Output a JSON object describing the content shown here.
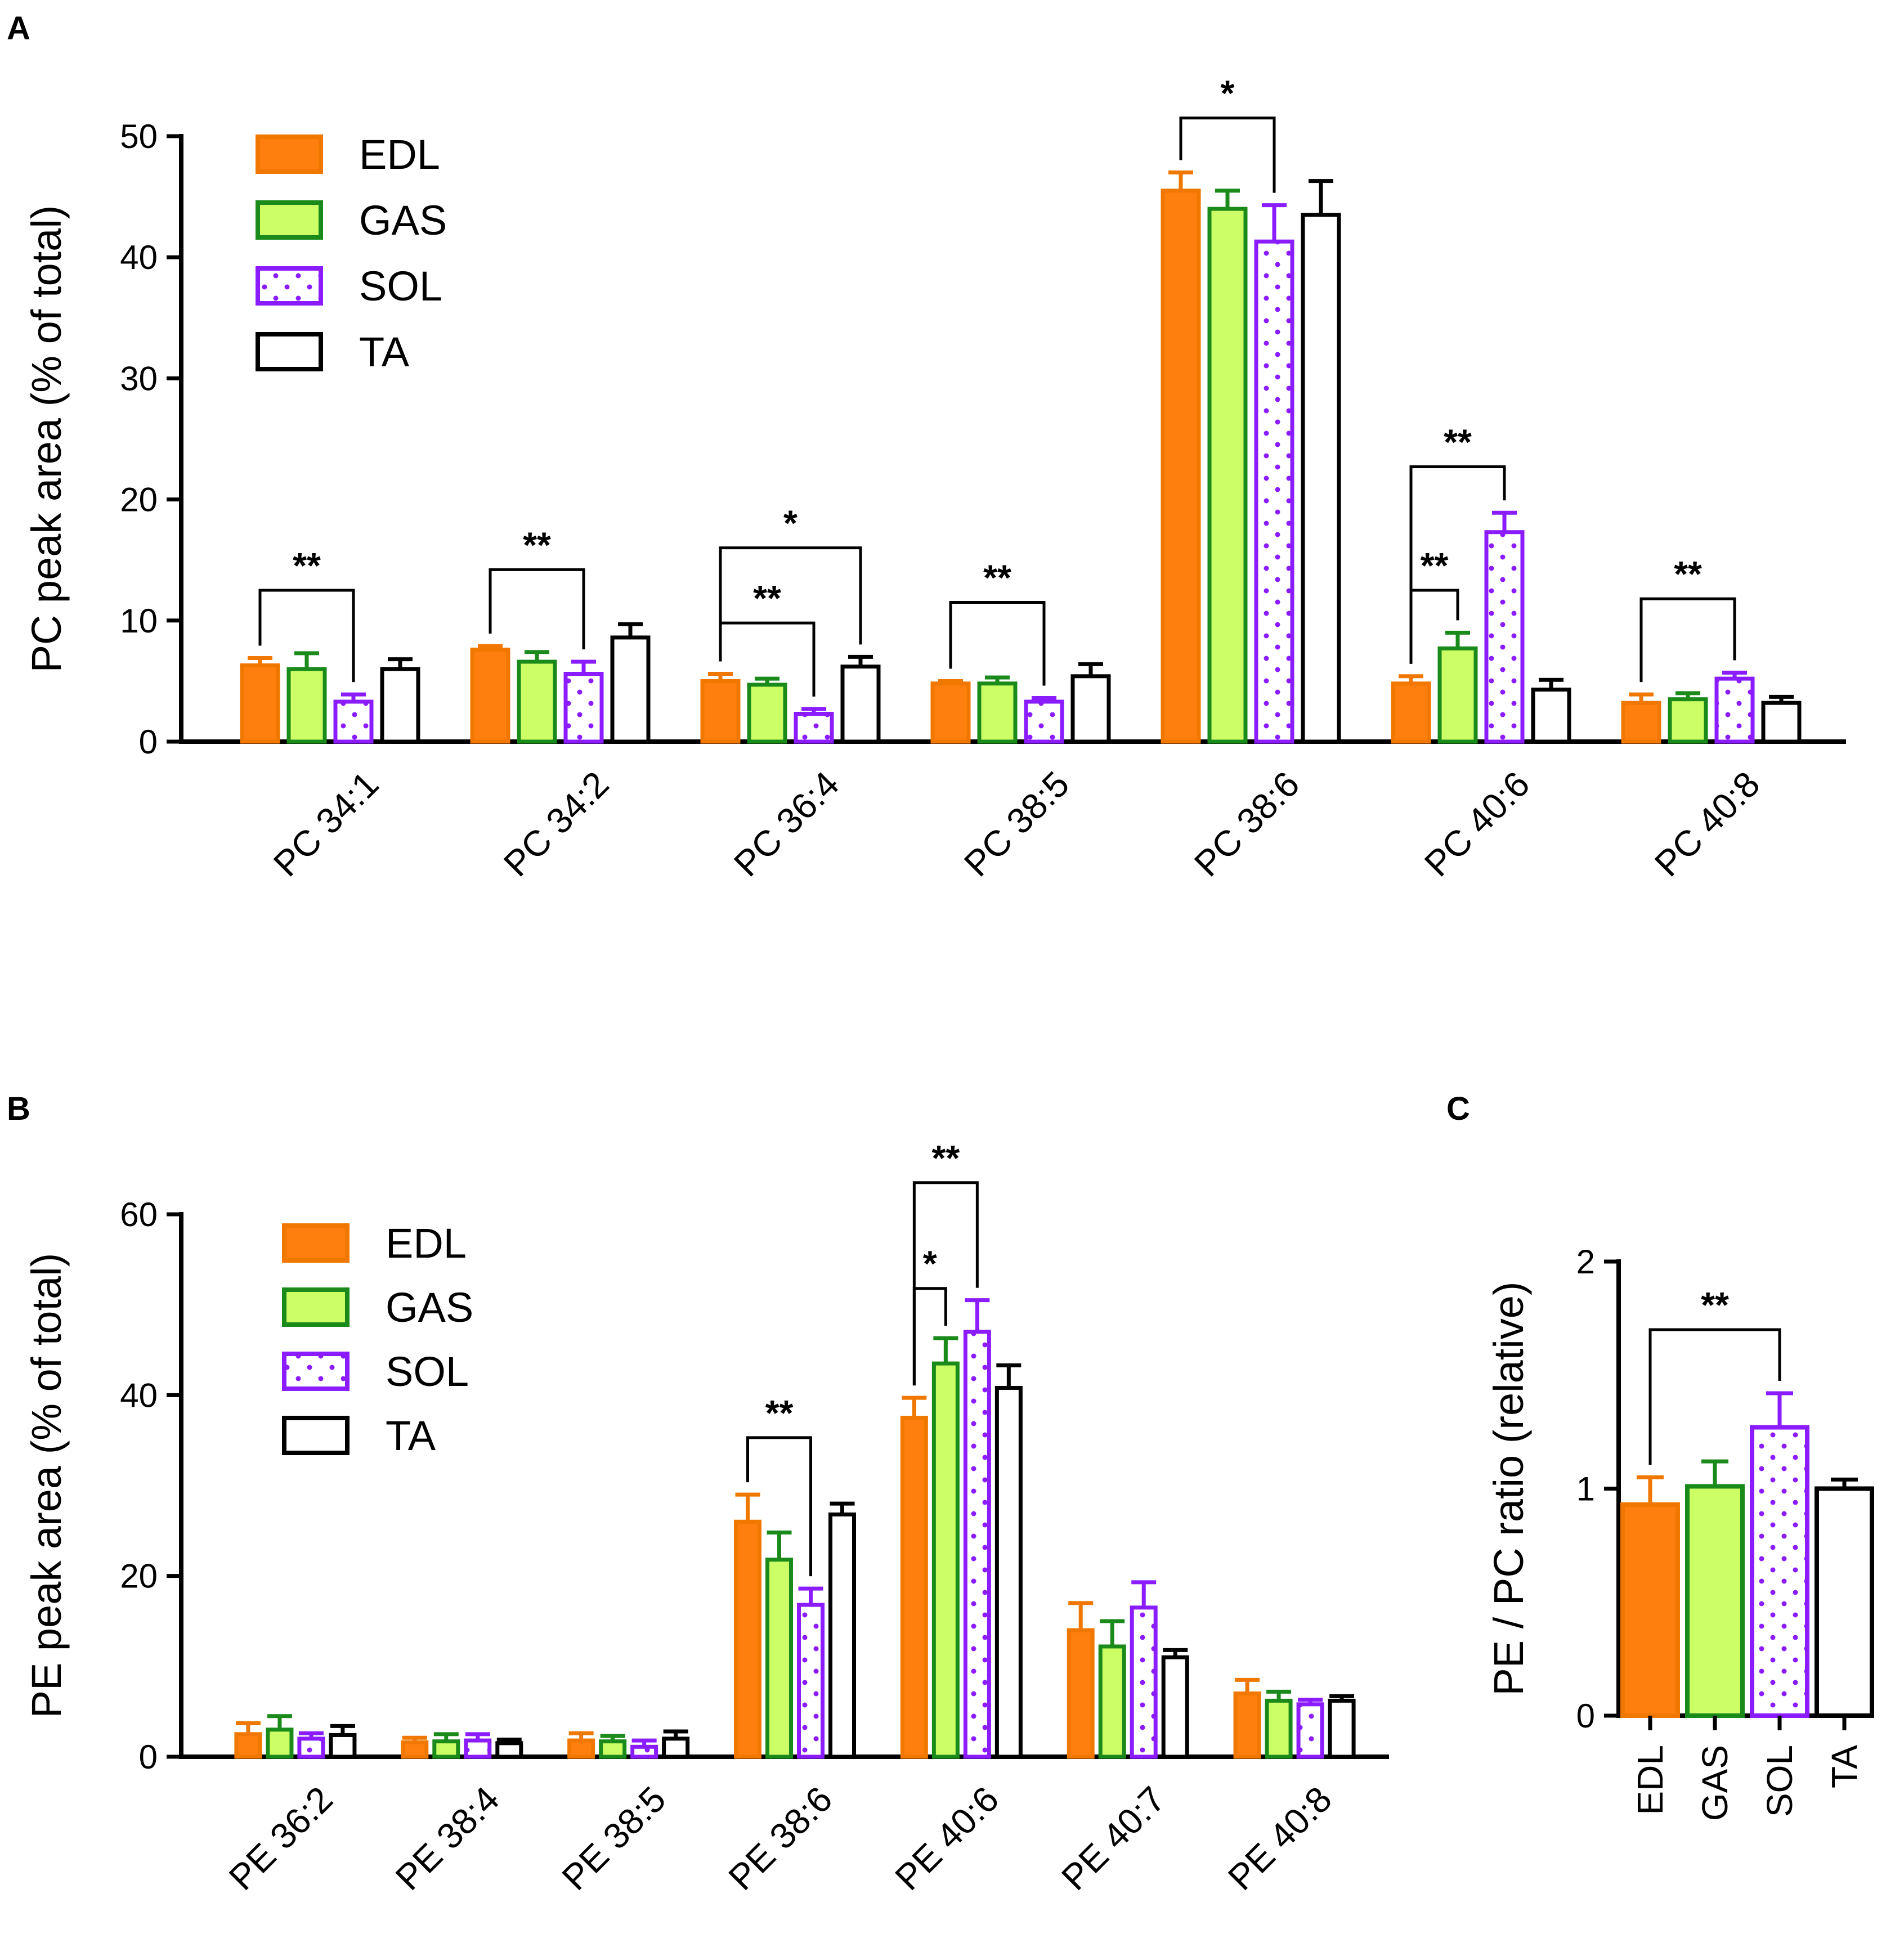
{
  "chart_data": [
    {
      "type": "bar",
      "panel": "A",
      "ylabel": "PC peak area (% of total)",
      "ylim": [
        0,
        50
      ],
      "yticks": [
        0,
        10,
        20,
        30,
        40,
        50
      ],
      "categories": [
        "PC 34:1",
        "PC 34:2",
        "PC 36:4",
        "PC 38:5",
        "PC 38:6",
        "PC 40:6",
        "PC 40:8"
      ],
      "series": [
        {
          "name": "EDL",
          "values": [
            6.3,
            7.6,
            5.0,
            4.8,
            45.5,
            4.8,
            3.2
          ],
          "errors": [
            0.6,
            0.3,
            0.6,
            0.2,
            1.5,
            0.6,
            0.7
          ]
        },
        {
          "name": "GAS",
          "values": [
            6.0,
            6.6,
            4.7,
            4.8,
            44.0,
            7.7,
            3.5
          ],
          "errors": [
            1.3,
            0.8,
            0.5,
            0.5,
            1.5,
            1.3,
            0.5
          ]
        },
        {
          "name": "SOL",
          "values": [
            3.3,
            5.6,
            2.3,
            3.3,
            41.3,
            17.3,
            5.2
          ],
          "errors": [
            0.6,
            1.0,
            0.4,
            0.3,
            3.0,
            1.6,
            0.5
          ]
        },
        {
          "name": "TA",
          "values": [
            6.0,
            8.6,
            6.2,
            5.4,
            43.5,
            4.3,
            3.2
          ],
          "errors": [
            0.8,
            1.1,
            0.8,
            1.0,
            2.8,
            0.8,
            0.5
          ]
        }
      ],
      "significance": [
        {
          "category": 0,
          "from": "EDL",
          "to": "SOL",
          "label": "**",
          "y": 12.5
        },
        {
          "category": 1,
          "from": "EDL",
          "to": "SOL",
          "label": "**",
          "y": 14.2
        },
        {
          "category": 2,
          "from": "EDL",
          "to": "SOL",
          "label": "**",
          "y": 9.8
        },
        {
          "category": 2,
          "from": "EDL",
          "to": "TA",
          "label": "*",
          "y": 16.0
        },
        {
          "category": 3,
          "from": "EDL",
          "to": "SOL",
          "label": "**",
          "y": 11.5
        },
        {
          "category": 4,
          "from": "EDL",
          "to": "SOL",
          "label": "*",
          "y": 51.5
        },
        {
          "category": 5,
          "from": "EDL",
          "to": "GAS",
          "label": "**",
          "y": 12.5
        },
        {
          "category": 5,
          "from": "EDL",
          "to": "SOL",
          "label": "**",
          "y": 22.7
        },
        {
          "category": 6,
          "from": "EDL",
          "to": "SOL",
          "label": "**",
          "y": 11.8
        }
      ],
      "legend": [
        "EDL",
        "GAS",
        "SOL",
        "TA"
      ]
    },
    {
      "type": "bar",
      "panel": "B",
      "ylabel": "PE peak area (% of total)",
      "ylim": [
        0,
        60
      ],
      "yticks": [
        0,
        20,
        40,
        60
      ],
      "categories": [
        "PE 36:2",
        "PE 38:4",
        "PE 38:5",
        "PE 38:6",
        "PE 40:6",
        "PE 40:7",
        "PE 40:8"
      ],
      "series": [
        {
          "name": "EDL",
          "values": [
            2.5,
            1.6,
            1.8,
            26.0,
            37.5,
            14.0,
            7.0
          ],
          "errors": [
            1.2,
            0.5,
            0.8,
            3.0,
            2.2,
            3.0,
            1.5
          ]
        },
        {
          "name": "GAS",
          "values": [
            3.0,
            1.7,
            1.7,
            21.8,
            43.5,
            12.2,
            6.2
          ],
          "errors": [
            1.5,
            0.8,
            0.6,
            3.0,
            2.8,
            2.8,
            1.0
          ]
        },
        {
          "name": "SOL",
          "values": [
            2.0,
            1.8,
            1.1,
            16.8,
            47.0,
            16.5,
            5.8
          ],
          "errors": [
            0.6,
            0.7,
            0.7,
            1.8,
            3.5,
            2.8,
            0.5
          ]
        },
        {
          "name": "TA",
          "values": [
            2.4,
            1.5,
            2.0,
            26.8,
            40.8,
            11.0,
            6.2
          ],
          "errors": [
            1.0,
            0.4,
            0.8,
            1.2,
            2.5,
            0.8,
            0.5
          ]
        }
      ],
      "significance": [
        {
          "category": 3,
          "from": "EDL",
          "to": "SOL",
          "label": "**",
          "y": 35.3
        },
        {
          "category": 4,
          "from": "EDL",
          "to": "GAS",
          "label": "*",
          "y": 51.8
        },
        {
          "category": 4,
          "from": "EDL",
          "to": "SOL",
          "label": "**",
          "y": 63.5
        }
      ],
      "legend": [
        "EDL",
        "GAS",
        "SOL",
        "TA"
      ]
    },
    {
      "type": "bar",
      "panel": "C",
      "ylabel": "PE / PC ratio (relative)",
      "ylim": [
        0,
        2
      ],
      "yticks": [
        0,
        1,
        2
      ],
      "categories": [
        "EDL",
        "GAS",
        "SOL",
        "TA"
      ],
      "values": [
        0.93,
        1.01,
        1.27,
        1.0
      ],
      "errors": [
        0.12,
        0.11,
        0.15,
        0.04
      ],
      "significance": [
        {
          "from": 0,
          "to": 2,
          "label": "**",
          "y": 1.7
        }
      ]
    }
  ],
  "panels": [
    "A",
    "B",
    "C"
  ],
  "colors": {
    "EDL_fill": "#ff7f0e",
    "EDL_stroke": "#f07700",
    "GAS_fill": "#ccff66",
    "GAS_stroke": "#1a8a1a",
    "SOL_fill": "#ffffff",
    "SOL_stroke": "#8a1cff",
    "TA_fill": "#ffffff",
    "TA_stroke": "#000000"
  }
}
